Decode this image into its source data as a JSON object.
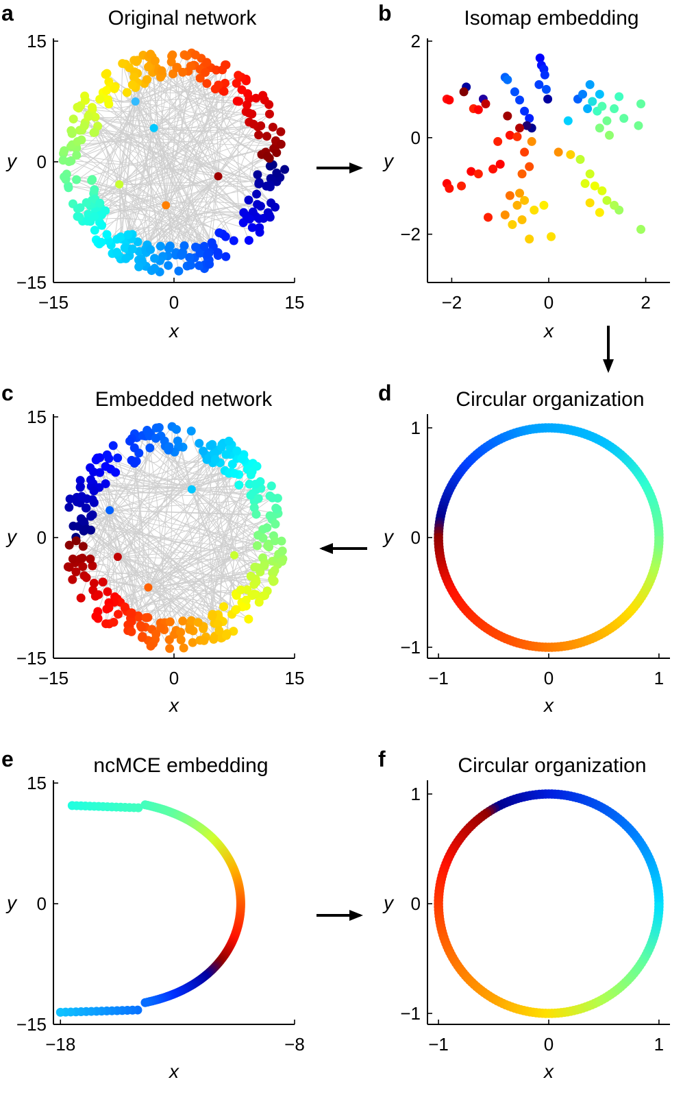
{
  "chart_data": [
    {
      "panel": "a",
      "type": "scatter",
      "title": "Original network",
      "xlabel": "x",
      "ylabel": "y",
      "xlim": [
        -15,
        15
      ],
      "ylim": [
        -15,
        15
      ],
      "xticks": [
        -15,
        0,
        15
      ],
      "yticks": [
        -15,
        0,
        15
      ],
      "xtick_labels": [
        "−15",
        "0",
        "15"
      ],
      "ytick_labels": [
        "−15",
        "0",
        "15"
      ],
      "grid": false,
      "description_of_marks": "network nodes on a disk of radius ~14 with grey edges, color encodes angular position (jet colormap)",
      "colorscale": "jet",
      "node_count": 300,
      "hubs": [
        {
          "x": -2.5,
          "y": 4.2,
          "color": "#00c8ff"
        },
        {
          "x": -1.0,
          "y": -5.4,
          "color": "#ff7f00"
        },
        {
          "x": 5.5,
          "y": -1.8,
          "color": "#a00000"
        },
        {
          "x": -4.8,
          "y": 7.5,
          "color": "#33bbff"
        },
        {
          "x": -6.8,
          "y": -2.8,
          "color": "#c8ff30"
        }
      ]
    },
    {
      "panel": "b",
      "type": "scatter",
      "title": "Isomap embedding",
      "xlabel": "x",
      "ylabel": "y",
      "xlim": [
        -2.5,
        2.5
      ],
      "ylim": [
        -3,
        2
      ],
      "xticks": [
        -2,
        0,
        2
      ],
      "yticks": [
        -2,
        0,
        2
      ],
      "xtick_labels": [
        "−2",
        "0",
        "2"
      ],
      "ytick_labels": [
        "−2",
        "0",
        "2"
      ],
      "grid": false,
      "points": [
        {
          "x": -0.18,
          "y": 1.65,
          "c": "#0000ff"
        },
        {
          "x": -0.15,
          "y": 1.5,
          "c": "#0010ff"
        },
        {
          "x": -0.1,
          "y": 1.42,
          "c": "#0020ff"
        },
        {
          "x": -0.08,
          "y": 1.3,
          "c": "#0030ff"
        },
        {
          "x": -0.2,
          "y": 1.1,
          "c": "#0040ff"
        },
        {
          "x": -0.05,
          "y": 1.0,
          "c": "#0050ff"
        },
        {
          "x": -0.02,
          "y": 0.8,
          "c": "#00009f"
        },
        {
          "x": -0.9,
          "y": 1.25,
          "c": "#0060ff"
        },
        {
          "x": -0.85,
          "y": 1.2,
          "c": "#0070ff"
        },
        {
          "x": -0.7,
          "y": 0.95,
          "c": "#0050ff"
        },
        {
          "x": -0.6,
          "y": 0.78,
          "c": "#0040ff"
        },
        {
          "x": -0.5,
          "y": 0.55,
          "c": "#0030ff"
        },
        {
          "x": -0.4,
          "y": 0.4,
          "c": "#0020ff"
        },
        {
          "x": -0.35,
          "y": 0.2,
          "c": "#00008f"
        },
        {
          "x": -0.45,
          "y": 0.25,
          "c": "#200070"
        },
        {
          "x": -1.7,
          "y": 1.05,
          "c": "#00009f"
        },
        {
          "x": -1.75,
          "y": 0.95,
          "c": "#800000"
        },
        {
          "x": -1.35,
          "y": 0.8,
          "c": "#2000a0"
        },
        {
          "x": -1.3,
          "y": 0.7,
          "c": "#c00000"
        },
        {
          "x": -2.1,
          "y": 0.8,
          "c": "#ff1010"
        },
        {
          "x": -2.05,
          "y": 0.78,
          "c": "#ff0000"
        },
        {
          "x": -1.55,
          "y": 0.6,
          "c": "#ff2000"
        },
        {
          "x": -1.45,
          "y": 0.58,
          "c": "#ff0000"
        },
        {
          "x": -0.85,
          "y": 0.45,
          "c": "#a00000"
        },
        {
          "x": -0.6,
          "y": 0.2,
          "c": "#b00000"
        },
        {
          "x": -0.8,
          "y": 0.05,
          "c": "#ff1000"
        },
        {
          "x": -1.05,
          "y": -0.08,
          "c": "#ff2000"
        },
        {
          "x": -0.65,
          "y": 0.02,
          "c": "#ff3000"
        },
        {
          "x": -0.35,
          "y": -0.08,
          "c": "#ff9000"
        },
        {
          "x": -0.5,
          "y": -0.3,
          "c": "#ff4000"
        },
        {
          "x": -0.4,
          "y": -0.6,
          "c": "#ff5000"
        },
        {
          "x": -0.55,
          "y": -0.75,
          "c": "#ff6000"
        },
        {
          "x": -1.0,
          "y": -0.55,
          "c": "#ff0000"
        },
        {
          "x": -1.15,
          "y": -0.65,
          "c": "#ff1000"
        },
        {
          "x": -1.6,
          "y": -0.7,
          "c": "#ff0000"
        },
        {
          "x": -1.45,
          "y": -0.75,
          "c": "#ff2000"
        },
        {
          "x": -2.1,
          "y": -0.95,
          "c": "#ff0000"
        },
        {
          "x": -2.05,
          "y": -1.05,
          "c": "#ff1000"
        },
        {
          "x": -1.8,
          "y": -1.0,
          "c": "#ff2000"
        },
        {
          "x": -0.8,
          "y": -1.2,
          "c": "#ff7000"
        },
        {
          "x": -0.6,
          "y": -1.15,
          "c": "#ffa000"
        },
        {
          "x": -0.9,
          "y": -1.6,
          "c": "#ff9000"
        },
        {
          "x": -0.65,
          "y": -1.4,
          "c": "#ffb000"
        },
        {
          "x": -0.5,
          "y": -1.3,
          "c": "#ffc000"
        },
        {
          "x": -0.75,
          "y": -1.8,
          "c": "#ffd000"
        },
        {
          "x": -0.55,
          "y": -1.7,
          "c": "#ffc000"
        },
        {
          "x": -0.4,
          "y": -2.1,
          "c": "#ffd000"
        },
        {
          "x": -0.3,
          "y": -1.5,
          "c": "#ffe000"
        },
        {
          "x": 0.05,
          "y": -2.05,
          "c": "#ffe000"
        },
        {
          "x": -0.1,
          "y": -1.4,
          "c": "#ffee00"
        },
        {
          "x": -1.25,
          "y": -1.65,
          "c": "#ff2000"
        },
        {
          "x": 0.2,
          "y": -0.3,
          "c": "#ff9000"
        },
        {
          "x": 0.45,
          "y": -0.35,
          "c": "#ffd000"
        },
        {
          "x": 0.65,
          "y": -0.45,
          "c": "#c0ff30"
        },
        {
          "x": 0.85,
          "y": -0.75,
          "c": "#d0ff20"
        },
        {
          "x": 0.75,
          "y": -0.95,
          "c": "#e0ff10"
        },
        {
          "x": 0.95,
          "y": -1.0,
          "c": "#f0ff00"
        },
        {
          "x": 1.1,
          "y": -1.1,
          "c": "#e0ff10"
        },
        {
          "x": 1.2,
          "y": -1.3,
          "c": "#c0ff30"
        },
        {
          "x": 1.45,
          "y": -1.5,
          "c": "#a0ff60"
        },
        {
          "x": 1.35,
          "y": -1.4,
          "c": "#b0ff50"
        },
        {
          "x": 1.05,
          "y": -1.55,
          "c": "#ffee00"
        },
        {
          "x": 0.85,
          "y": -1.35,
          "c": "#ffe000"
        },
        {
          "x": 1.9,
          "y": -1.9,
          "c": "#a0ff60"
        },
        {
          "x": 0.4,
          "y": 0.35,
          "c": "#00d0ff"
        },
        {
          "x": 0.6,
          "y": 0.8,
          "c": "#0060ff"
        },
        {
          "x": 0.7,
          "y": 0.9,
          "c": "#0080ff"
        },
        {
          "x": 0.8,
          "y": 0.6,
          "c": "#00b0ff"
        },
        {
          "x": 0.9,
          "y": 0.75,
          "c": "#20e0e0"
        },
        {
          "x": 1.0,
          "y": 0.55,
          "c": "#40ffc0"
        },
        {
          "x": 1.1,
          "y": 0.65,
          "c": "#50ffb0"
        },
        {
          "x": 1.2,
          "y": 0.35,
          "c": "#70ff90"
        },
        {
          "x": 1.05,
          "y": 0.2,
          "c": "#80ff80"
        },
        {
          "x": 1.25,
          "y": 0.05,
          "c": "#90ff70"
        },
        {
          "x": 0.85,
          "y": 1.1,
          "c": "#00a0ff"
        },
        {
          "x": 1.05,
          "y": 0.9,
          "c": "#00c0ff"
        },
        {
          "x": 1.45,
          "y": 0.85,
          "c": "#40ffc0"
        },
        {
          "x": 1.35,
          "y": 0.6,
          "c": "#50ffb0"
        },
        {
          "x": 1.9,
          "y": 0.7,
          "c": "#60ffa0"
        },
        {
          "x": 1.85,
          "y": 0.25,
          "c": "#70ff90"
        },
        {
          "x": 1.55,
          "y": 0.4,
          "c": "#60ffa0"
        }
      ]
    },
    {
      "panel": "c",
      "type": "scatter",
      "title": "Embedded network",
      "xlabel": "x",
      "ylabel": "y",
      "xlim": [
        -15,
        15
      ],
      "ylim": [
        -15,
        15
      ],
      "xticks": [
        -15,
        0,
        15
      ],
      "yticks": [
        -15,
        0,
        15
      ],
      "xtick_labels": [
        "−15",
        "0",
        "15"
      ],
      "ytick_labels": [
        "−15",
        "0",
        "15"
      ],
      "grid": false,
      "description_of_marks": "network nodes re-embedded on a disk of radius ~14 with grey edges, jet colormap",
      "colorscale": "jet",
      "node_count": 300,
      "hubs": [
        {
          "x": 2.2,
          "y": 6.0,
          "color": "#00c8ff"
        },
        {
          "x": -7.0,
          "y": -2.4,
          "color": "#c00000"
        },
        {
          "x": -3.2,
          "y": -6.2,
          "color": "#ff6000"
        },
        {
          "x": 7.5,
          "y": -2.2,
          "color": "#c8ff30"
        },
        {
          "x": -8.0,
          "y": 3.4,
          "color": "#0060ff"
        }
      ]
    },
    {
      "panel": "d",
      "type": "scatter",
      "title": "Circular organization",
      "xlabel": "x",
      "ylabel": "y",
      "xlim": [
        -1.1,
        1.1
      ],
      "ylim": [
        -1.1,
        1.1
      ],
      "xticks": [
        -1,
        0,
        1
      ],
      "yticks": [
        -1,
        0,
        1
      ],
      "xtick_labels": [
        "−1",
        "0",
        "1"
      ],
      "ytick_labels": [
        "−1",
        "0",
        "1"
      ],
      "grid": false,
      "description_of_marks": "nodes placed on unit circle, color by angle",
      "radius": 1,
      "color_stops": [
        {
          "angle_deg": 0,
          "color": "#70ff90"
        },
        {
          "angle_deg": 30,
          "color": "#30ffd0"
        },
        {
          "angle_deg": 60,
          "color": "#00c0ff"
        },
        {
          "angle_deg": 100,
          "color": "#00a0ff"
        },
        {
          "angle_deg": 140,
          "color": "#0040ff"
        },
        {
          "angle_deg": 170,
          "color": "#000090"
        },
        {
          "angle_deg": 180,
          "color": "#900000"
        },
        {
          "angle_deg": 210,
          "color": "#ff1000"
        },
        {
          "angle_deg": 250,
          "color": "#ff5000"
        },
        {
          "angle_deg": 290,
          "color": "#ffa000"
        },
        {
          "angle_deg": 320,
          "color": "#ffe000"
        },
        {
          "angle_deg": 345,
          "color": "#b0ff50"
        },
        {
          "angle_deg": 360,
          "color": "#70ff90"
        }
      ]
    },
    {
      "panel": "e",
      "type": "scatter",
      "title": "ncMCE embedding",
      "xlabel": "x",
      "ylabel": "y",
      "xlim": [
        -18.3,
        -8
      ],
      "ylim": [
        -15,
        15
      ],
      "xticks": [
        -18,
        -8
      ],
      "yticks": [
        -15,
        0,
        15
      ],
      "xtick_labels": [
        "−18",
        "−8"
      ],
      "ytick_labels": [
        "−15",
        "0",
        "15"
      ],
      "grid": false,
      "description_of_marks": "nodes along a C-shaped curve from (-17.5, 12.2) to (-18, -13.5), jet colormap",
      "curve_color_stops": [
        {
          "t": 0.0,
          "color": "#20ffe0"
        },
        {
          "t": 0.15,
          "color": "#60ffa0"
        },
        {
          "t": 0.28,
          "color": "#d0ff30"
        },
        {
          "t": 0.4,
          "color": "#ffb000"
        },
        {
          "t": 0.5,
          "color": "#ff6000"
        },
        {
          "t": 0.62,
          "color": "#ff1000"
        },
        {
          "t": 0.7,
          "color": "#900000"
        },
        {
          "t": 0.76,
          "color": "#0000a0"
        },
        {
          "t": 0.86,
          "color": "#0030ff"
        },
        {
          "t": 1.0,
          "color": "#10c0ff"
        }
      ]
    },
    {
      "panel": "f",
      "type": "scatter",
      "title": "Circular organization",
      "xlabel": "x",
      "ylabel": "y",
      "xlim": [
        -1.1,
        1.1
      ],
      "ylim": [
        -1.1,
        1.1
      ],
      "xticks": [
        -1,
        0,
        1
      ],
      "yticks": [
        -1,
        0,
        1
      ],
      "xtick_labels": [
        "−1",
        "0",
        "1"
      ],
      "ytick_labels": [
        "−1",
        "0",
        "1"
      ],
      "grid": false,
      "description_of_marks": "nodes placed on unit circle, color by angle",
      "radius": 1,
      "color_stops": [
        {
          "angle_deg": 0,
          "color": "#00e0ff"
        },
        {
          "angle_deg": 40,
          "color": "#0080ff"
        },
        {
          "angle_deg": 90,
          "color": "#0020e0"
        },
        {
          "angle_deg": 118,
          "color": "#000090"
        },
        {
          "angle_deg": 125,
          "color": "#900000"
        },
        {
          "angle_deg": 160,
          "color": "#ff1000"
        },
        {
          "angle_deg": 200,
          "color": "#ff6000"
        },
        {
          "angle_deg": 240,
          "color": "#ffa000"
        },
        {
          "angle_deg": 270,
          "color": "#ffe000"
        },
        {
          "angle_deg": 300,
          "color": "#b0ff50"
        },
        {
          "angle_deg": 330,
          "color": "#60ffa0"
        },
        {
          "angle_deg": 360,
          "color": "#00e0ff"
        }
      ]
    }
  ]
}
